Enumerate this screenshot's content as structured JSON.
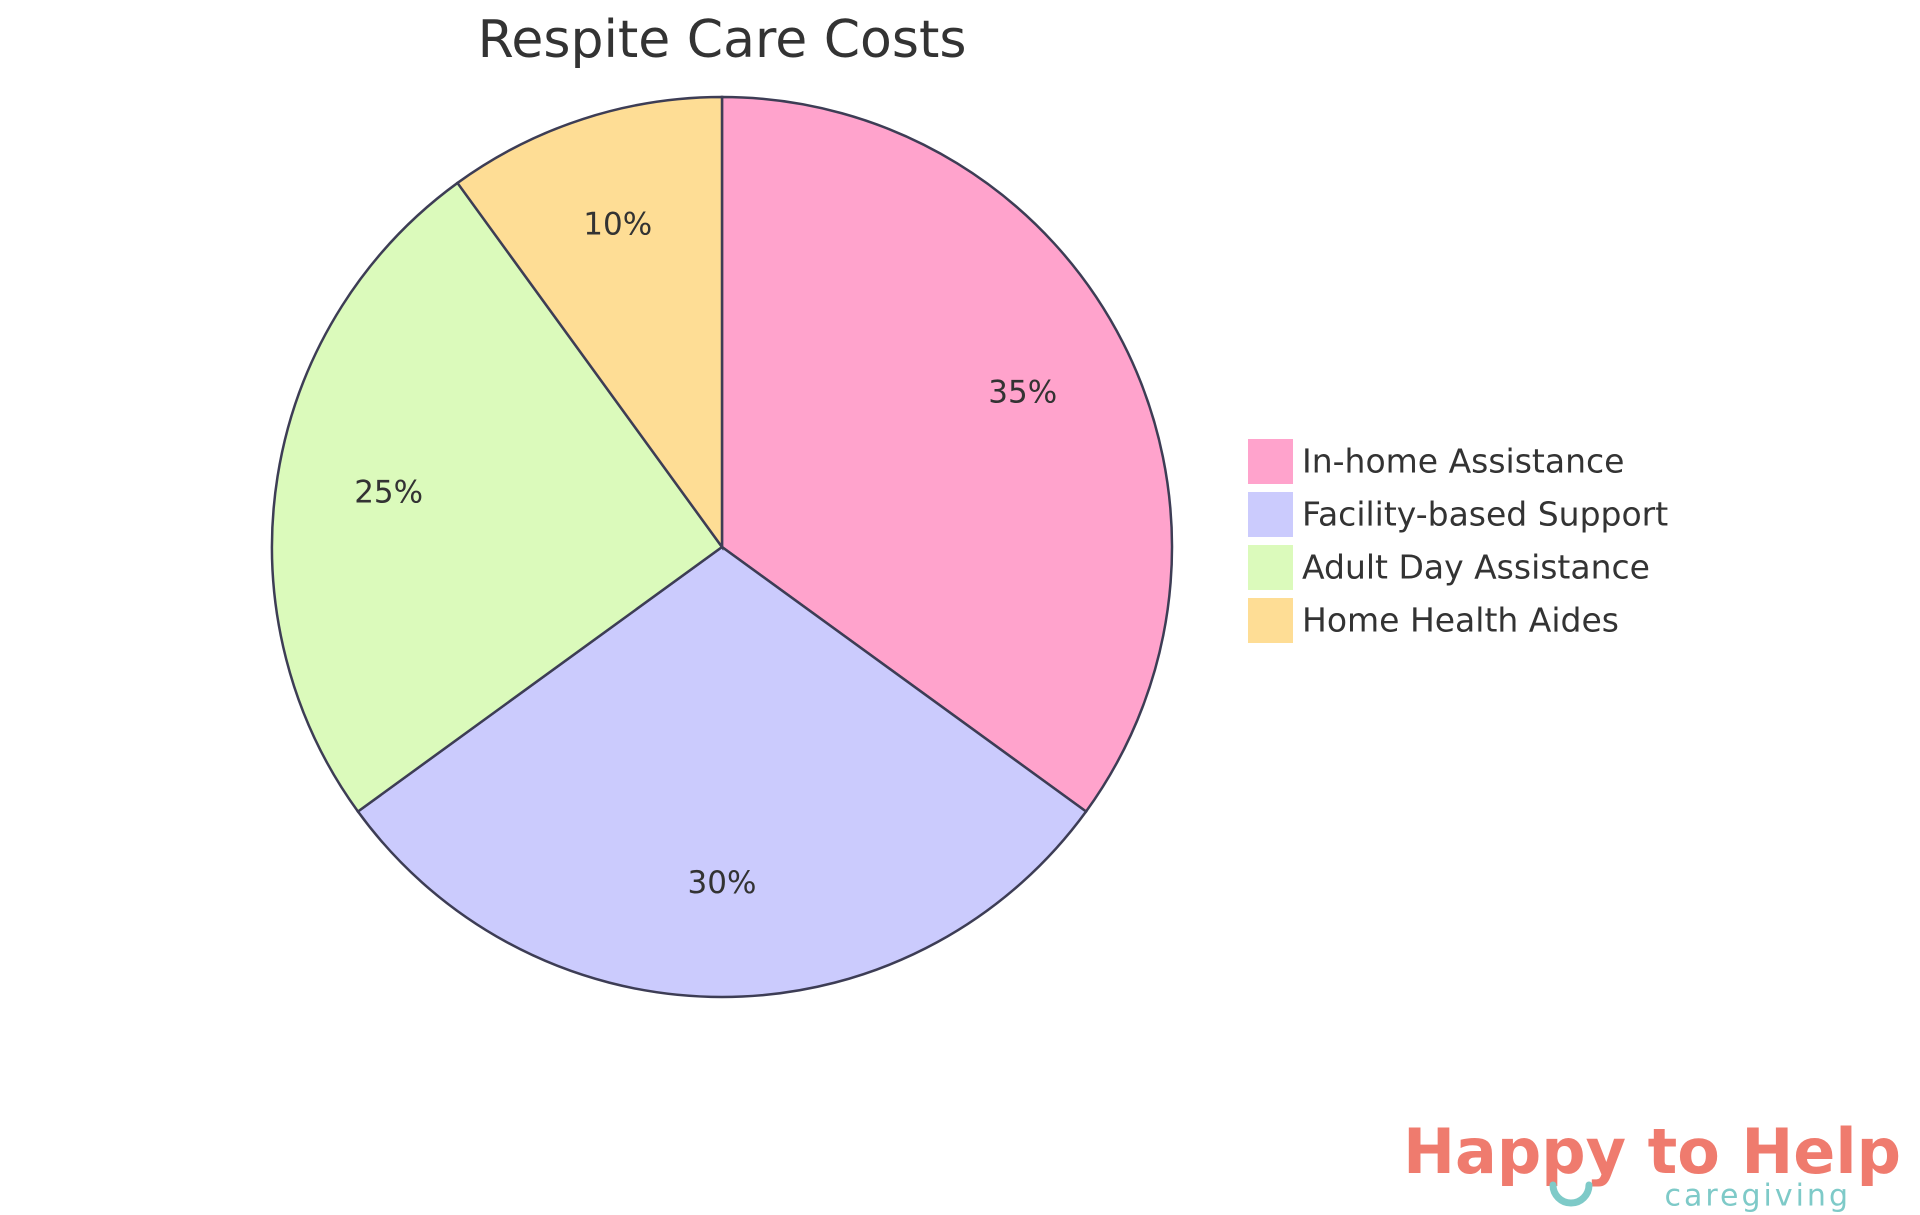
{
  "chart_data": {
    "type": "pie",
    "title": "Respite Care Costs",
    "categories": [
      "In-home Assistance",
      "Facility-based Support",
      "Adult Day Assistance",
      "Home Health Aides"
    ],
    "values": [
      35,
      30,
      25,
      10
    ],
    "value_labels": [
      "35%",
      "30%",
      "25%",
      "10%"
    ],
    "colors": [
      "#ffa3cc",
      "#cbcbfd",
      "#dbfabb",
      "#fedd95"
    ],
    "legend": "right"
  },
  "logo": {
    "name": "Happy to Help",
    "tagline": "caregiving"
  }
}
